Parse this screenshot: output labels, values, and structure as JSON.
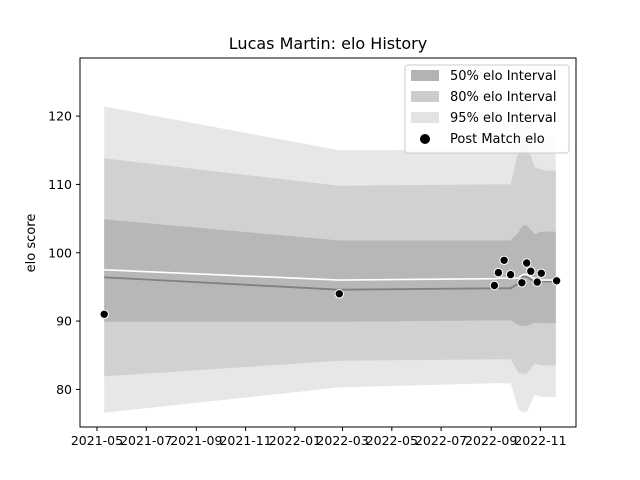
{
  "chart_data": {
    "type": "line",
    "title": "Lucas Martin: elo History",
    "xlabel": "",
    "ylabel": "elo score",
    "x_ticks": [
      "2021-05",
      "2021-07",
      "2021-09",
      "2021-11",
      "2022-01",
      "2022-03",
      "2022-05",
      "2022-07",
      "2022-09",
      "2022-11"
    ],
    "y_ticks": [
      80,
      90,
      100,
      110,
      120
    ],
    "xlim": [
      "2021-04-10",
      "2022-12-15"
    ],
    "ylim": [
      74.5,
      128.5
    ],
    "grid": false,
    "legend_position": "top-right",
    "legend": [
      {
        "label": "50% elo Interval",
        "color": "#b3b3b3"
      },
      {
        "label": "80% elo Interval",
        "color": "#cccccc"
      },
      {
        "label": "95% elo Interval",
        "color": "#e3e3e3"
      },
      {
        "label": "Post Match elo",
        "color": "#000000"
      }
    ],
    "x": [
      "2021-05-10",
      "2022-02-25",
      "2022-09-05",
      "2022-09-15",
      "2022-09-25",
      "2022-10-05",
      "2022-10-10",
      "2022-10-15",
      "2022-10-25",
      "2022-11-02",
      "2022-11-10",
      "2022-11-20"
    ],
    "series": [
      {
        "name": "mean",
        "values": [
          97.5,
          96.0,
          96.2,
          96.3,
          96.2,
          96.3,
          96.8,
          96.8,
          96.2,
          96.0,
          96.0,
          96.0
        ]
      },
      {
        "name": "median",
        "values": [
          96.4,
          94.6,
          94.8,
          94.8,
          94.8,
          95.5,
          96.5,
          96.5,
          95.7,
          95.8,
          95.8,
          95.8
        ]
      },
      {
        "name": "50_lower",
        "values": [
          89.9,
          89.9,
          90.1,
          90.1,
          90.1,
          89.4,
          89.3,
          89.3,
          89.8,
          89.7,
          89.7,
          89.7
        ]
      },
      {
        "name": "50_upper",
        "values": [
          104.9,
          101.8,
          101.8,
          101.8,
          101.8,
          103.0,
          104.0,
          104.0,
          102.7,
          103.1,
          103.1,
          103.1
        ]
      },
      {
        "name": "80_lower",
        "values": [
          81.9,
          84.2,
          84.4,
          84.4,
          84.4,
          82.4,
          82.3,
          82.3,
          83.8,
          83.5,
          83.5,
          83.5
        ]
      },
      {
        "name": "80_upper",
        "values": [
          113.8,
          109.8,
          110.0,
          110.0,
          110.0,
          115.0,
          116.0,
          116.0,
          112.5,
          112.2,
          112.0,
          112.0
        ]
      },
      {
        "name": "95_lower",
        "values": [
          76.6,
          80.3,
          80.9,
          80.9,
          80.9,
          77.0,
          76.7,
          76.7,
          79.2,
          78.9,
          78.9,
          78.9
        ]
      },
      {
        "name": "95_upper",
        "values": [
          121.4,
          115.0,
          115.1,
          115.1,
          115.1,
          121.0,
          122.5,
          122.5,
          117.5,
          117.0,
          117.0,
          117.0
        ]
      }
    ],
    "points": {
      "name": "Post Match elo",
      "x": [
        "2021-05-10",
        "2022-02-25",
        "2022-09-05",
        "2022-09-10",
        "2022-09-17",
        "2022-09-25",
        "2022-10-09",
        "2022-10-15",
        "2022-10-20",
        "2022-10-28",
        "2022-11-02",
        "2022-11-21"
      ],
      "y": [
        91.0,
        94.0,
        95.2,
        97.1,
        98.9,
        96.8,
        95.6,
        98.5,
        97.3,
        95.7,
        97.0,
        95.9
      ]
    }
  }
}
